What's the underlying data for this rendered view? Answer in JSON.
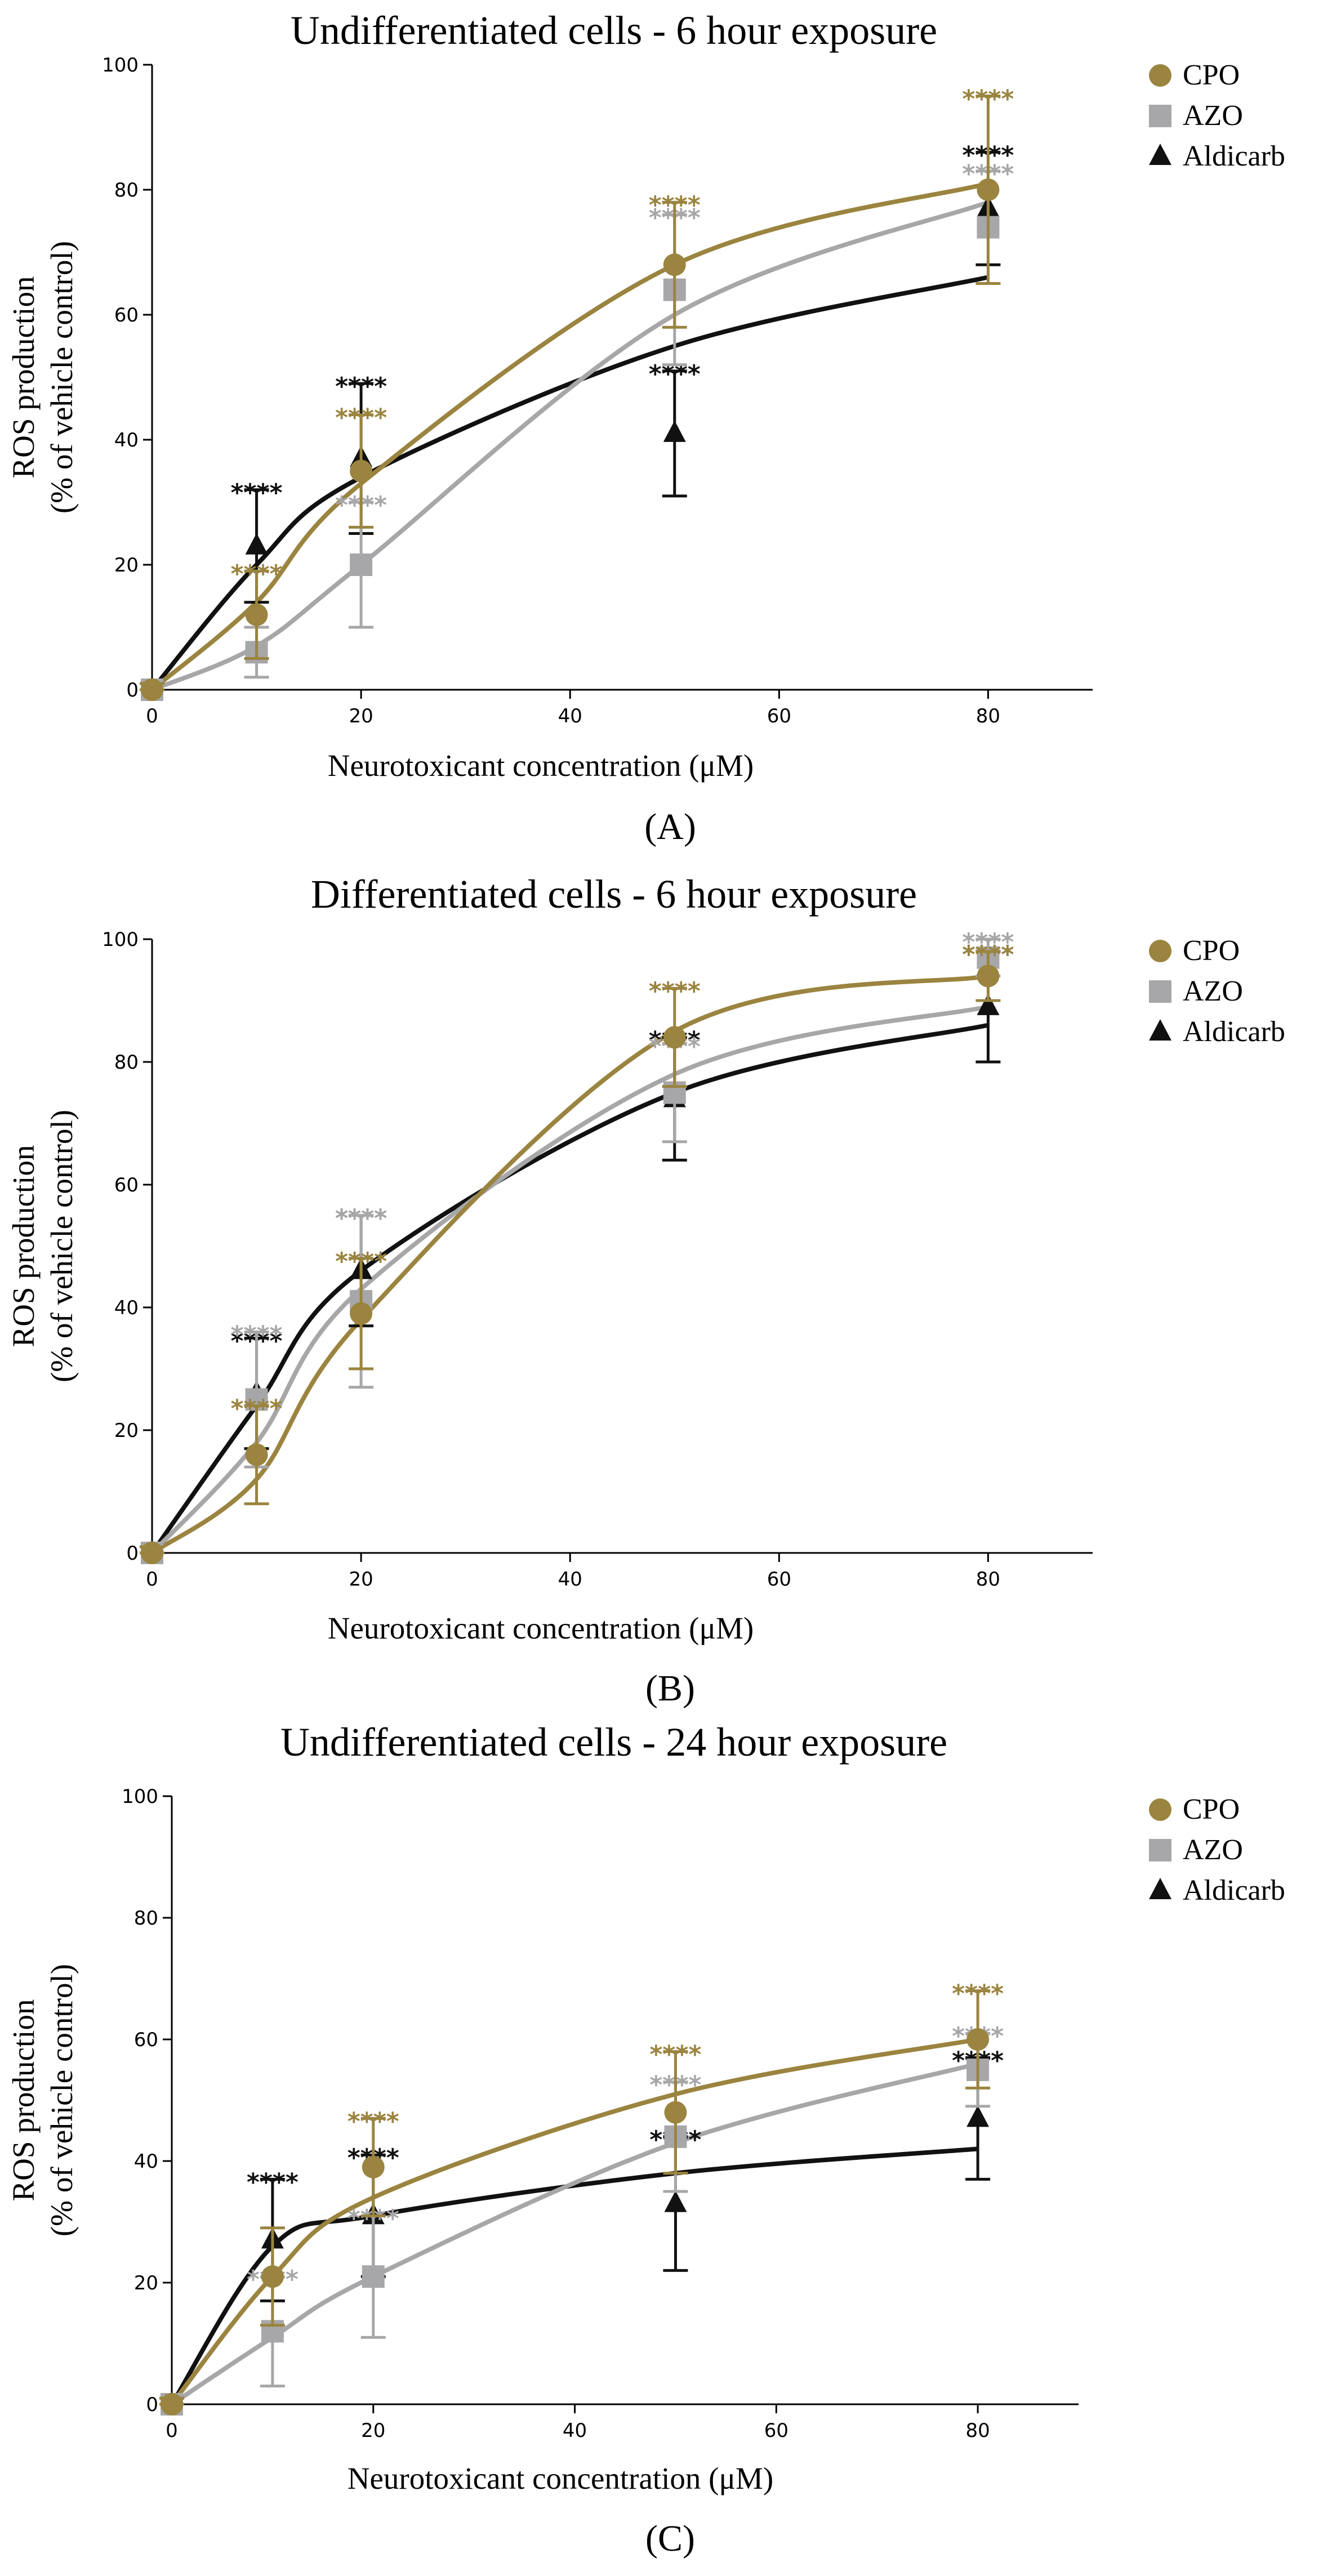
{
  "colors": {
    "CPO": "#9a843f",
    "AZO": "#a7a7a9",
    "Aldicarb": "#111111"
  },
  "chart_data": [
    {
      "type": "line",
      "panel": "A",
      "title": "Undifferentiated cells - 6 hour exposure",
      "xlabel": "Neurotoxicant concentration (μM)",
      "ylabel": [
        "ROS production",
        "(% of vehicle control)"
      ],
      "xlim": [
        0,
        90
      ],
      "ylim": [
        0,
        100
      ],
      "xticks": [
        0,
        20,
        40,
        60,
        80
      ],
      "yticks": [
        0,
        20,
        40,
        60,
        80,
        100
      ],
      "x": [
        0,
        10,
        20,
        50,
        80
      ],
      "series": [
        {
          "name": "CPO",
          "values": [
            0,
            12,
            35,
            68,
            80
          ],
          "errors": [
            1,
            7,
            9,
            10,
            15
          ],
          "fit": [
            0,
            14,
            33,
            68,
            81
          ],
          "stars": [
            "",
            "****",
            "****",
            "****",
            "****"
          ]
        },
        {
          "name": "AZO",
          "values": [
            0,
            6,
            20,
            64,
            74
          ],
          "errors": [
            1,
            4,
            10,
            12,
            9
          ],
          "fit": [
            0,
            7,
            20,
            60,
            78
          ],
          "stars": [
            "",
            "",
            "****",
            "****",
            "****"
          ]
        },
        {
          "name": "Aldicarb",
          "values": [
            0,
            23,
            37,
            41,
            77
          ],
          "errors": [
            1,
            9,
            12,
            10,
            9
          ],
          "fit": [
            0,
            20,
            34,
            55,
            66
          ],
          "stars": [
            "",
            "****",
            "****",
            "****",
            "****"
          ]
        }
      ]
    },
    {
      "type": "line",
      "panel": "B",
      "title": "Differentiated cells - 6 hour exposure",
      "xlabel": "Neurotoxicant concentration (μM)",
      "ylabel": [
        "ROS production",
        "(% of vehicle control)"
      ],
      "xlim": [
        0,
        90
      ],
      "ylim": [
        0,
        100
      ],
      "xticks": [
        0,
        20,
        40,
        60,
        80
      ],
      "yticks": [
        0,
        20,
        40,
        60,
        80,
        100
      ],
      "x": [
        0,
        10,
        20,
        50,
        80
      ],
      "series": [
        {
          "name": "CPO",
          "values": [
            0,
            16,
            39,
            84,
            94
          ],
          "errors": [
            1,
            8,
            9,
            8,
            4
          ],
          "fit": [
            0,
            12,
            38,
            85,
            94
          ],
          "stars": [
            "",
            "****",
            "****",
            "****",
            "****"
          ]
        },
        {
          "name": "AZO",
          "values": [
            0,
            25,
            41,
            75,
            97
          ],
          "errors": [
            1,
            11,
            14,
            8,
            3
          ],
          "fit": [
            0,
            18,
            43,
            78,
            89
          ],
          "stars": [
            "",
            "****",
            "****",
            "****",
            "****"
          ]
        },
        {
          "name": "Aldicarb",
          "values": [
            0,
            26,
            46,
            74,
            89
          ],
          "errors": [
            1,
            9,
            9,
            10,
            9
          ],
          "fit": [
            0,
            24,
            46,
            75,
            86
          ],
          "stars": [
            "",
            "****",
            "****",
            "****",
            "****"
          ]
        }
      ]
    },
    {
      "type": "line",
      "panel": "C",
      "title": "Undifferentiated cells - 24 hour exposure",
      "xlabel": "Neurotoxicant concentration (μM)",
      "ylabel": [
        "ROS production",
        "(% of vehicle control)"
      ],
      "xlim": [
        0,
        90
      ],
      "ylim": [
        0,
        100
      ],
      "xticks": [
        0,
        20,
        40,
        60,
        80
      ],
      "yticks": [
        0,
        20,
        40,
        60,
        80,
        100
      ],
      "x": [
        0,
        10,
        20,
        50,
        80
      ],
      "series": [
        {
          "name": "CPO",
          "values": [
            0,
            21,
            39,
            48,
            60
          ],
          "errors": [
            1,
            8,
            8,
            10,
            8
          ],
          "fit": [
            0,
            21,
            34,
            51,
            60
          ],
          "stars": [
            "",
            "",
            "****",
            "****",
            "****"
          ]
        },
        {
          "name": "AZO",
          "values": [
            0,
            12,
            21,
            44,
            55
          ],
          "errors": [
            1,
            9,
            10,
            9,
            6
          ],
          "fit": [
            0,
            11,
            21,
            43,
            56
          ],
          "stars": [
            "",
            "****",
            "****",
            "****",
            "****"
          ]
        },
        {
          "name": "Aldicarb",
          "values": [
            0,
            27,
            31,
            33,
            47
          ],
          "errors": [
            1,
            10,
            10,
            11,
            10
          ],
          "fit": [
            0,
            26,
            31,
            38,
            42
          ],
          "stars": [
            "",
            "****",
            "****",
            "****",
            "****"
          ]
        }
      ]
    }
  ]
}
